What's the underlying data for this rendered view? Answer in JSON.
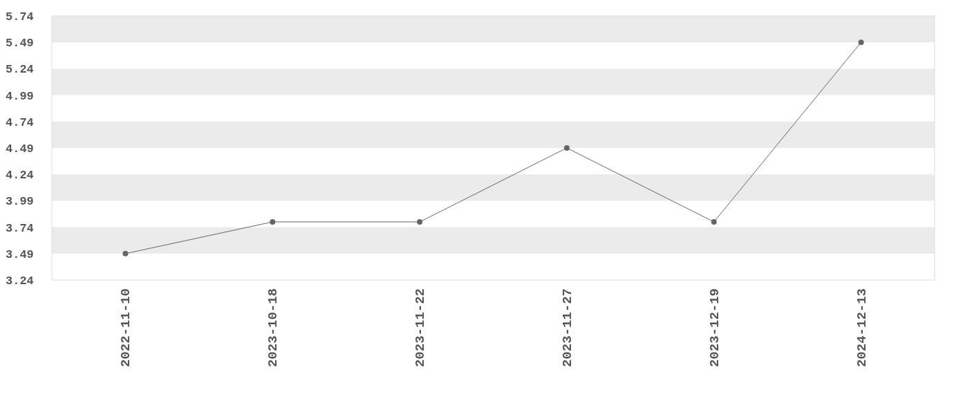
{
  "chart_data": {
    "type": "line",
    "categories": [
      "2022-11-10",
      "2023-10-18",
      "2023-11-22",
      "2023-11-27",
      "2023-12-19",
      "2024-12-13"
    ],
    "series": [
      {
        "color": "#666666",
        "values": [
          3.49,
          3.79,
          3.79,
          4.49,
          3.79,
          5.49
        ]
      }
    ],
    "ylim": [
      3.24,
      5.74
    ],
    "yticks": [
      3.24,
      3.49,
      3.74,
      3.99,
      4.24,
      4.49,
      4.74,
      4.99,
      5.24,
      5.49,
      5.74
    ],
    "bands": [
      {
        "axis": "y",
        "from": 3.49,
        "to": 3.74,
        "color": "#ebebeb"
      },
      {
        "axis": "y",
        "from": 3.99,
        "to": 4.24,
        "color": "#ebebeb"
      },
      {
        "axis": "y",
        "from": 4.49,
        "to": 4.74,
        "color": "#ebebeb"
      },
      {
        "axis": "y",
        "from": 4.99,
        "to": 5.24,
        "color": "#ebebeb"
      },
      {
        "axis": "y",
        "from": 5.49,
        "to": 5.74,
        "color": "#ebebeb"
      }
    ],
    "marker": "circle",
    "line_style": "solid"
  }
}
